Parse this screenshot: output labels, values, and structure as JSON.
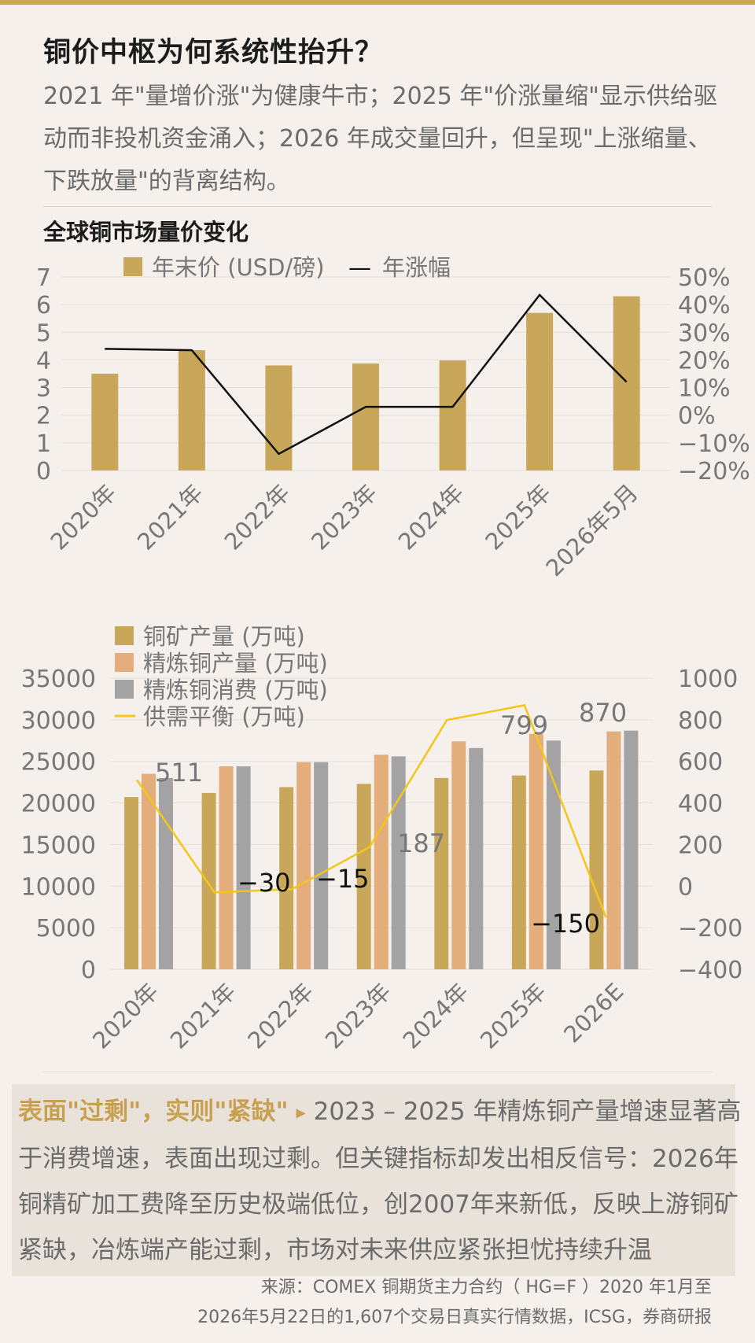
{
  "header": {
    "title": "铜价中枢为何系统性抬升？",
    "subtitle": "2021 年\"量增价涨\"为健康牛市；2025 年\"价涨量缩\"显示供给驱动而非投机资金涌入；2026 年成交量回升，但呈现\"上涨缩量、下跌放量\"的背离结构。"
  },
  "chart1_title": "全球铜市场量价变化",
  "colors": {
    "gold": "#c9a75a",
    "peach": "#e3ad7c",
    "gray": "#a3a3a3",
    "yellow": "#f5c518",
    "line": "#111111",
    "accent": "#c9a050"
  },
  "chart_data": [
    {
      "type": "bar",
      "categories": [
        "2020年",
        "2021年",
        "2022年",
        "2023年",
        "2024年",
        "2025年",
        "2026年5月"
      ],
      "series": [
        {
          "name": "年末价 (USD/磅)",
          "type": "bar",
          "axis": "left",
          "values": [
            3.5,
            4.35,
            3.8,
            3.87,
            3.98,
            5.7,
            6.3
          ]
        },
        {
          "name": "年涨幅",
          "type": "line",
          "axis": "right",
          "values": [
            24,
            23.5,
            -14,
            3,
            3,
            43.5,
            12
          ]
        }
      ],
      "ylim": [
        0,
        7
      ],
      "y2lim": [
        -20,
        50
      ],
      "yticks": [
        "0",
        "1",
        "2",
        "3",
        "4",
        "5",
        "6",
        "7"
      ],
      "y2ticks": [
        "−20%",
        "−10%",
        "0%",
        "10%",
        "20%",
        "30%",
        "40%",
        "50%"
      ],
      "legend": {
        "bar": "年末价 (USD/磅)",
        "dash": "—",
        "line": "年涨幅"
      }
    },
    {
      "type": "bar",
      "categories": [
        "2020年",
        "2021年",
        "2022年",
        "2023年",
        "2024年",
        "2025年",
        "2026E"
      ],
      "series": [
        {
          "name": "铜矿产量 (万吨)",
          "type": "bar",
          "axis": "left",
          "values": [
            20700,
            21200,
            21900,
            22300,
            23000,
            23300,
            23900
          ]
        },
        {
          "name": "精炼铜产量 (万吨)",
          "type": "bar",
          "axis": "left",
          "values": [
            23500,
            24400,
            24900,
            25800,
            27400,
            28300,
            28600
          ]
        },
        {
          "name": "精炼铜消费 (万吨)",
          "type": "bar",
          "axis": "left",
          "values": [
            23000,
            24400,
            24900,
            25600,
            26600,
            27500,
            28700
          ]
        },
        {
          "name": "供需平衡 (万吨)",
          "type": "line",
          "axis": "right",
          "values": [
            511,
            -30,
            -15,
            187,
            799,
            870,
            -150
          ]
        }
      ],
      "data_labels": [
        "511",
        "−30",
        "−15",
        "187",
        "799",
        "870",
        "−150"
      ],
      "ylim": [
        0,
        35000
      ],
      "y2lim": [
        -400,
        1000
      ],
      "yticks": [
        "0",
        "5000",
        "10000",
        "15000",
        "20000",
        "25000",
        "30000",
        "35000"
      ],
      "y2ticks": [
        "−400",
        "−200",
        "0",
        "200",
        "400",
        "600",
        "800",
        "1000"
      ]
    }
  ],
  "callout": {
    "highlight": "表面\"过剩\"，实则\"紧缺\"",
    "arrow": "▶",
    "text": "2023 – 2025 年精炼铜产量增速显著高于消费增速，表面出现过剩。但关键指标却发出相反信号：2026年铜精矿加工费降至历史极端低位，创2007年来新低，反映上游铜矿紧缺，冶炼端产能过剩，市场对未来供应紧张担忧持续升温"
  },
  "source": {
    "line1": "来源：COMEX 铜期货主力合约（ HG=F ）2020 年1月至",
    "line2": "2026年5月22日的1,607个交易日真实行情数据，ICSG，券商研报"
  }
}
